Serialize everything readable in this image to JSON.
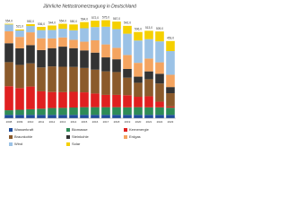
{
  "chart_data": {
    "type": "stacked-bar",
    "title": "Jährliche Nettostromerzeugung in Deutschland",
    "categories": [
      "2008",
      "2009",
      "2010",
      "2011",
      "2012",
      "2013",
      "2014",
      "2015",
      "2016",
      "2017",
      "2018",
      "2019",
      "2020",
      "2021",
      "2022",
      "2023"
    ],
    "ylim": [
      0,
      620
    ],
    "series": [
      {
        "name": "Wasserkraft",
        "color": "#1f4e9c",
        "values": [
          20,
          20,
          20,
          20,
          20,
          20,
          20,
          20,
          20,
          20,
          20,
          20,
          20,
          20,
          20,
          20
        ]
      },
      {
        "name": "Biomasse",
        "color": "#2e8b57",
        "values": [
          27,
          30,
          33,
          36,
          40,
          41,
          43,
          45,
          45,
          45,
          45,
          44,
          45,
          44,
          44,
          42
        ]
      },
      {
        "name": "Kernenergie",
        "color": "#e02020",
        "values": [
          141,
          127,
          133,
          102,
          94,
          92,
          92,
          87,
          80,
          72,
          72,
          71,
          61,
          65,
          33,
          7
        ]
      },
      {
        "name": "Braunkohle",
        "color": "#8b5a2b",
        "values": [
          141,
          136,
          136,
          140,
          150,
          149,
          146,
          143,
          140,
          138,
          134,
          103,
          82,
          100,
          107,
          78
        ]
      },
      {
        "name": "Steinkohle",
        "color": "#333333",
        "values": [
          111,
          97,
          107,
          102,
          107,
          118,
          110,
          103,
          100,
          82,
          75,
          51,
          36,
          46,
          57,
          36
        ]
      },
      {
        "name": "Erdgas",
        "color": "#f4a460",
        "values": [
          70,
          67,
          75,
          69,
          57,
          54,
          49,
          51,
          72,
          76,
          67,
          82,
          81,
          75,
          67,
          72
        ]
      },
      {
        "name": "Wind",
        "color": "#9bc2e6",
        "values": [
          40,
          38,
          37,
          48,
          50,
          51,
          56,
          79,
          78,
          104,
          110,
          125,
          131,
          114,
          123,
          139
        ]
      },
      {
        "name": "Solar",
        "color": "#f5d000",
        "values": [
          4,
          6,
          11,
          19,
          26,
          29,
          34,
          36,
          37,
          38,
          44,
          46,
          50,
          49,
          58,
          59
        ]
      }
    ],
    "totals": {
      "values": [
        554,
        521,
        552,
        536,
        544,
        554,
        550,
        564,
        572,
        575,
        567,
        542,
        506,
        513,
        509,
        453
      ],
      "value_labels": [
        "554,0",
        "521,0",
        "552,0",
        "536,0",
        "544,0",
        "554,0",
        "550,0",
        "564,0",
        "572,0",
        "575,0",
        "567,0",
        "542,0",
        "506,0",
        "513,0",
        "509,0",
        "453,0"
      ]
    }
  }
}
